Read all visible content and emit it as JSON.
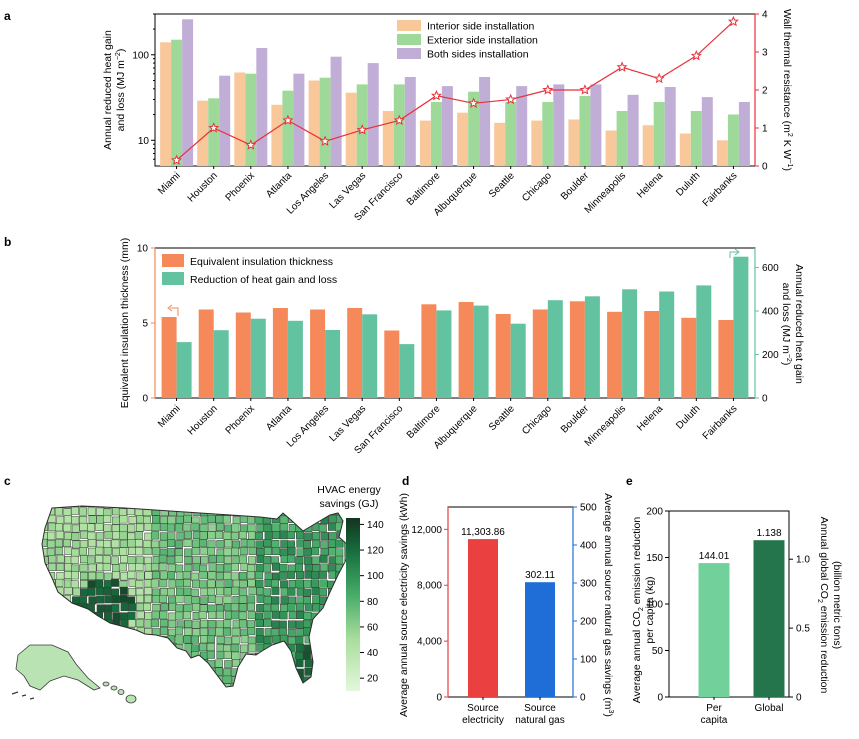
{
  "panel_labels": [
    "a",
    "b",
    "c",
    "d",
    "e"
  ],
  "chart_data": [
    {
      "id": "a",
      "type": "bar",
      "scale": "log",
      "categories": [
        "Miami",
        "Houston",
        "Phoenix",
        "Atlanta",
        "Los Angeles",
        "Las Vegas",
        "San Francisco",
        "Baltimore",
        "Albuquerque",
        "Seattle",
        "Chicago",
        "Boulder",
        "Minneapolis",
        "Helena",
        "Duluth",
        "Fairbanks"
      ],
      "series": [
        {
          "name": "Interior side installation",
          "color": "#f9c89a",
          "values": [
            140,
            29,
            62,
            26,
            50,
            36,
            22,
            17,
            21,
            16,
            17,
            17.5,
            13,
            15,
            12,
            10
          ]
        },
        {
          "name": "Exterior side installation",
          "color": "#9fd99a",
          "values": [
            150,
            31,
            60,
            38,
            54,
            45,
            45,
            28,
            37,
            28,
            28,
            33,
            22,
            28,
            22,
            20
          ]
        },
        {
          "name": "Both sides installation",
          "color": "#c1aed6",
          "values": [
            260,
            57,
            120,
            60,
            95,
            80,
            55,
            43,
            55,
            43,
            45,
            45,
            34,
            42,
            32,
            28
          ]
        }
      ],
      "ylabel": "Annual reduced heat gain and loss (MJ m⁻²)",
      "yticks": [
        "10",
        "100"
      ],
      "ylim": [
        5,
        300
      ],
      "right_axis": {
        "label": "Wall thermal resistance (m² K W⁻¹)",
        "ticks": [
          "0",
          "1",
          "2",
          "3",
          "4"
        ],
        "ylim": [
          0,
          4
        ],
        "color": "#e8313b",
        "values": [
          0.15,
          1.0,
          0.55,
          1.2,
          0.65,
          0.95,
          1.2,
          1.85,
          1.65,
          1.75,
          2.0,
          2.0,
          2.6,
          2.3,
          2.9,
          3.8
        ]
      }
    },
    {
      "id": "b",
      "type": "bar",
      "categories": [
        "Miami",
        "Houston",
        "Phoenix",
        "Atlanta",
        "Los Angeles",
        "Las Vegas",
        "San Francisco",
        "Baltimore",
        "Albuquerque",
        "Seattle",
        "Chicago",
        "Boulder",
        "Minneapolis",
        "Helena",
        "Duluth",
        "Fairbanks"
      ],
      "series": [
        {
          "name": "Equivalent insulation thickness",
          "color": "#f5895a",
          "values": [
            5.4,
            5.9,
            5.7,
            6.0,
            5.9,
            6.0,
            4.5,
            6.25,
            6.4,
            5.6,
            5.9,
            6.45,
            5.75,
            5.8,
            5.35,
            5.2
          ]
        },
        {
          "name": "Reduction of heat gain and loss",
          "color": "#63c3a0",
          "values": [
            257,
            312,
            365,
            355,
            313,
            385,
            248,
            403,
            425,
            342,
            450,
            468,
            500,
            490,
            518,
            650
          ]
        }
      ],
      "ylabel": "Equivalent insulation thickness (mm)",
      "yticks": [
        "0",
        "5",
        "10"
      ],
      "ylim": [
        0,
        10
      ],
      "left_color": "#f5895a",
      "right_axis": {
        "label": "Annual reduced heat gain and loss (MJ m⁻²)",
        "ticks": [
          "0",
          "200",
          "400",
          "600"
        ],
        "ylim": [
          0,
          690
        ],
        "color": "#63c3a0"
      }
    },
    {
      "id": "c",
      "type": "heatmap",
      "title": "HVAC energy savings (GJ)",
      "colorbar_ticks": [
        "20",
        "40",
        "60",
        "80",
        "100",
        "120",
        "140"
      ],
      "range": [
        10,
        145
      ]
    },
    {
      "id": "d",
      "type": "bar",
      "categories": [
        "Source electricity",
        "Source natural gas"
      ],
      "values": [
        11303.86,
        302.11
      ],
      "data_labels": [
        "11,303.86",
        "302.11"
      ],
      "colors": [
        "#ea4040",
        "#1f6ed8"
      ],
      "ylabel": "Average annual source electricity savings (kWh)",
      "yticks": [
        "0",
        "4,000",
        "8,000",
        "12,000"
      ],
      "ylim": [
        0,
        13600
      ],
      "right_axis": {
        "label": "Average annual source natural gas savings (m³)",
        "ticks": [
          "0",
          "100",
          "200",
          "300",
          "400",
          "500"
        ],
        "ylim": [
          0,
          500
        ],
        "color": "#1f6ed8"
      }
    },
    {
      "id": "e",
      "type": "bar",
      "categories": [
        "Per capita",
        "Global"
      ],
      "values": [
        144.01,
        1.138
      ],
      "data_labels": [
        "144.01",
        "1.138"
      ],
      "colors": [
        "#72d09b",
        "#24744c"
      ],
      "ylabel": "Average annual CO₂ emission reduction per capita (kg)",
      "yticks": [
        "0",
        "50",
        "100",
        "150",
        "200"
      ],
      "ylim": [
        0,
        200
      ],
      "right_axis": {
        "label": "Annual global CO₂ emission reduction (billion metric tons)",
        "ticks": [
          "0",
          "0.5",
          "1.0"
        ],
        "ylim": [
          0,
          1.35
        ]
      }
    }
  ]
}
